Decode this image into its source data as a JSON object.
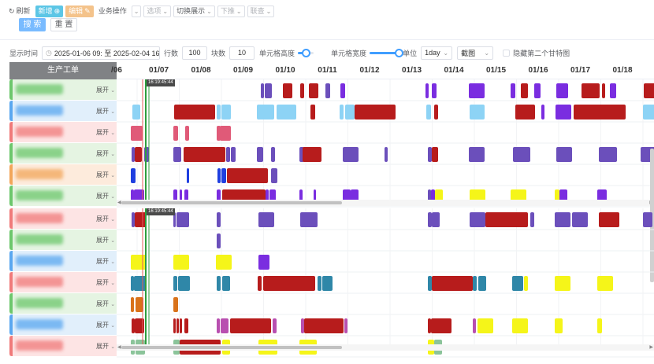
{
  "toolbar": {
    "refresh": "刷新",
    "add": "新增",
    "edit": "编辑",
    "business_ops": "业务操作",
    "options": "选项",
    "switch_display": "切换展示",
    "dispatch": "下推",
    "link": "联查",
    "search": "搜 索",
    "reset": "重 置"
  },
  "filters": {
    "display_time_label": "显示时间",
    "date_range": "2025-01-06 09: 至 2025-02-04 16:",
    "rows_label": "行数",
    "rows_value": "100",
    "blocks_label": "块数",
    "blocks_value": "10",
    "cell_height_label": "单元格高度",
    "cell_height_level": 0.55,
    "cell_width_label": "单元格宽度",
    "cell_width_level": 1.0,
    "unit_label": "单位",
    "unit_value": "1day",
    "mode_value": "截图",
    "hide_second_gantt": "隐藏第二个甘特图"
  },
  "gantt": {
    "left_header": "生产工单",
    "expand_label": "展开",
    "dates": [
      "/06",
      "01/07",
      "01/08",
      "01/09",
      "01/10",
      "01/11",
      "01/12",
      "01/13",
      "01/14",
      "01/15",
      "01/16",
      "01/17",
      "01/18"
    ],
    "marker_label": "16:19:45:44",
    "colors": {
      "red": "#b71c1c",
      "purple": "#6b4fbb",
      "violet": "#7a2de0",
      "lightblue": "#8dd3f5",
      "pink": "#e05a78",
      "blue": "#1f3fe0",
      "yellow": "#f5f519",
      "teal": "#2f87a8",
      "orange": "#d9721a",
      "magenta": "#b84fb0",
      "sage": "#8bc49a",
      "green": "#2e9e3e"
    },
    "panel1_rows": [
      {
        "tag": "#6cc76c",
        "bg": "#e5f4e2"
      },
      {
        "tag": "#5aa7f0",
        "bg": "#e1effb"
      },
      {
        "tag": "#f07a7a",
        "bg": "#fde4e4"
      },
      {
        "tag": "#6cc76c",
        "bg": "#e5f4e2"
      },
      {
        "tag": "#f2a65a",
        "bg": "#fdebdc"
      },
      {
        "tag": "#6cc76c",
        "bg": "#e5f4e2"
      }
    ],
    "panel2_rows": [
      {
        "tag": "#f07a7a",
        "bg": "#fde4e4"
      },
      {
        "tag": "#6cc76c",
        "bg": "#e5f4e2"
      },
      {
        "tag": "#5aa7f0",
        "bg": "#e1effb"
      },
      {
        "tag": "#f07a7a",
        "bg": "#fde4e4"
      },
      {
        "tag": "#6cc76c",
        "bg": "#e5f4e2"
      },
      {
        "tag": "#5aa7f0",
        "bg": "#e1effb"
      },
      {
        "tag": "#f07a7a",
        "bg": "#fde4e4"
      }
    ]
  }
}
